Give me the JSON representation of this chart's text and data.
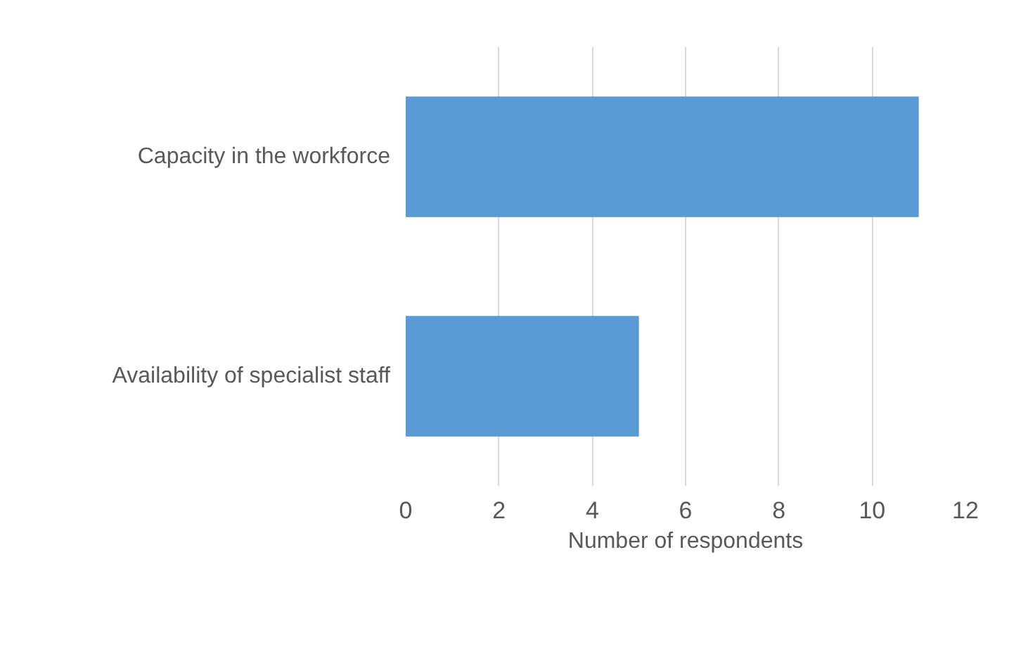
{
  "chart_data": {
    "type": "bar",
    "orientation": "horizontal",
    "categories": [
      "Capacity in the workforce",
      "Availability of specialist staff"
    ],
    "values": [
      11,
      5
    ],
    "color": "#5b9bd5",
    "xlabel": "Number of respondents",
    "xlim": [
      0,
      12
    ],
    "xticks": [
      0,
      2,
      4,
      6,
      8,
      10,
      12
    ],
    "grid": "x"
  }
}
